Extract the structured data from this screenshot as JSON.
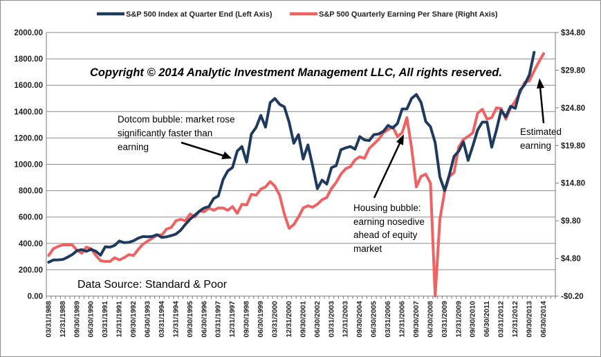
{
  "chart_data": {
    "type": "line",
    "axes": {
      "left": {
        "min": 0,
        "max": 2000,
        "step": 200,
        "tick_labels": [
          "0.00",
          "200.00",
          "400.00",
          "600.00",
          "800.00",
          "1000.00",
          "1200.00",
          "1400.00",
          "1600.00",
          "1800.00",
          "2000.00"
        ]
      },
      "right": {
        "min": -0.2,
        "max": 34.8,
        "step": 5,
        "tick_labels": [
          "-$0.20",
          "$4.80",
          "$9.80",
          "$14.80",
          "$19.80",
          "$24.80",
          "$29.80",
          "$34.80"
        ]
      },
      "x_tick_labels": [
        "03/31/1988",
        "12/31/1988",
        "09/30/1989",
        "06/30/1990",
        "03/31/1991",
        "12/31/1991",
        "09/30/1992",
        "06/30/1993",
        "03/31/1994",
        "12/31/1994",
        "09/30/1995",
        "06/30/1996",
        "03/31/1997",
        "12/31/1997",
        "09/30/1998",
        "06/30/1999",
        "03/31/2000",
        "12/31/2000",
        "09/30/2001",
        "06/30/2002",
        "03/31/2003",
        "12/31/2003",
        "09/30/2004",
        "06/30/2005",
        "03/31/2006",
        "12/31/2006",
        "09/30/2007",
        "06/30/2008",
        "03/31/2009",
        "12/31/2009",
        "09/30/2010",
        "06/30/2011",
        "03/31/2012",
        "12/31/2012",
        "09/30/2013",
        "06/30/2014"
      ],
      "x_range": [
        "03/31/1988",
        "12/31/2014"
      ],
      "grid": "horizontal"
    },
    "legend_position": "top",
    "series": [
      {
        "name": "S&P 500 Index at Quarter End (Left Axis)",
        "axis": "left",
        "color": "#1f3a5f",
        "values": [
          258,
          274,
          275,
          278,
          295,
          315,
          345,
          353,
          340,
          355,
          340,
          310,
          375,
          371,
          385,
          418,
          405,
          408,
          420,
          440,
          452,
          450,
          453,
          466,
          445,
          450,
          459,
          471,
          500,
          544,
          584,
          614,
          645,
          669,
          680,
          740,
          760,
          885,
          950,
          976,
          1100,
          1135,
          1017,
          1229,
          1280,
          1371,
          1282,
          1469,
          1499,
          1455,
          1436,
          1320,
          1160,
          1225,
          1040,
          1147,
          990,
          815,
          880,
          850,
          975,
          990,
          1110,
          1125,
          1135,
          1115,
          1210,
          1185,
          1180,
          1225,
          1230,
          1250,
          1295,
          1275,
          1310,
          1420,
          1420,
          1500,
          1530,
          1470,
          1325,
          1285,
          1165,
          905,
          800,
          920,
          1060,
          1100,
          1170,
          1030,
          1140,
          1260,
          1320,
          1320,
          1130,
          1260,
          1410,
          1360,
          1440,
          1425,
          1560,
          1605,
          1680,
          1850
        ],
        "end": "09/30/2013"
      },
      {
        "name": "S&P 500 Quarterly Earning Per Share (Right Axis)",
        "axis": "right",
        "color": "#f06262",
        "values": [
          5.2,
          6.1,
          6.4,
          6.6,
          6.6,
          6.6,
          5.9,
          5.5,
          6.3,
          6.1,
          5.2,
          4.5,
          4.4,
          4.4,
          4.9,
          4.6,
          4.9,
          5.3,
          5.2,
          6.0,
          6.7,
          7.1,
          7.5,
          7.9,
          7.9,
          8.7,
          8.9,
          9.8,
          10.0,
          9.8,
          10.7,
          10.3,
          11.1,
          11.0,
          11.5,
          11.2,
          11.5,
          11.5,
          11.2,
          11.7,
          10.8,
          12.0,
          11.9,
          13.3,
          13.2,
          14.0,
          14.3,
          15.0,
          14.4,
          13.2,
          10.7,
          8.8,
          9.3,
          10.3,
          11.5,
          11.8,
          11.6,
          12.0,
          12.6,
          12.9,
          14.1,
          14.9,
          16.0,
          16.7,
          17.0,
          17.9,
          18.3,
          18.1,
          19.4,
          20.0,
          20.6,
          21.5,
          21.9,
          22.3,
          21.0,
          21.5,
          23.5,
          19.5,
          14.3,
          15.7,
          16.0,
          14.8,
          -0.2,
          10.0,
          13.7,
          15.7,
          16.2,
          19.6,
          20.6,
          21.0,
          21.5,
          24.1,
          24.6,
          23.3,
          23.5,
          24.8,
          24.7,
          23.3,
          24.8,
          25.7,
          26.8,
          28.2,
          28.4,
          29.7,
          30.9,
          32.0
        ],
        "end": "12/31/2014"
      }
    ],
    "annotations": {
      "copyright": "Copyright © 2014 Analytic Investment Management LLC, All rights reserved.",
      "source": "Data Source: Standard & Poor",
      "dotcom": [
        "Dotcom bubble: market rose",
        "significantly faster than",
        "earning"
      ],
      "housing": [
        "Housing bubble:",
        "earning nosedive",
        "ahead of equity",
        "market"
      ],
      "estimated": [
        "Estimated",
        "earning"
      ]
    }
  }
}
